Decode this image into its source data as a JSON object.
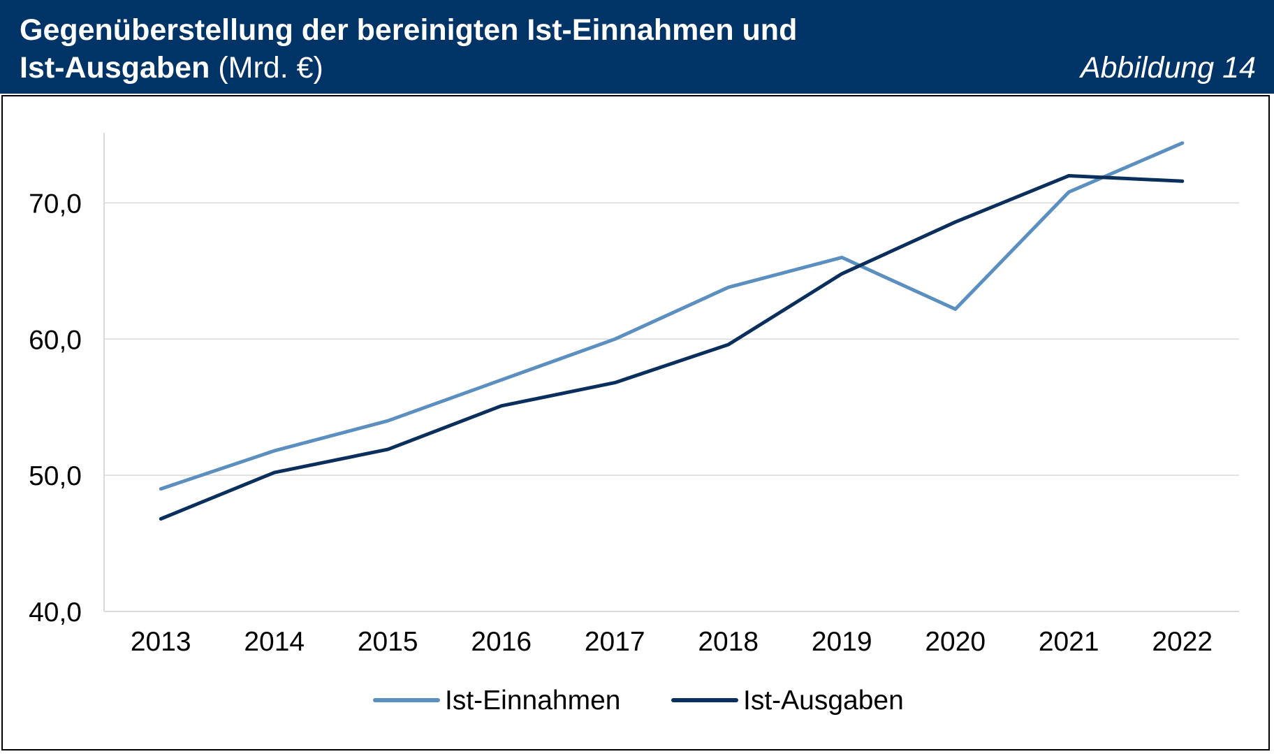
{
  "header": {
    "title_line1": "Gegenüberstellung der bereinigten Ist-Einnahmen und",
    "title_line2_bold": "Ist-Ausgaben",
    "title_line2_unit": "(Mrd. €)",
    "figure_label": "Abbildung 14",
    "background_color": "#003366",
    "text_color": "#ffffff"
  },
  "chart_data": {
    "type": "line",
    "title": "Gegenüberstellung der bereinigten Ist-Einnahmen und Ist-Ausgaben (Mrd. €)",
    "xlabel": "",
    "ylabel": "",
    "categories": [
      "2013",
      "2014",
      "2015",
      "2016",
      "2017",
      "2018",
      "2019",
      "2020",
      "2021",
      "2022"
    ],
    "ylim": [
      40,
      75
    ],
    "yticks": [
      40,
      50,
      60,
      70
    ],
    "ytick_labels": [
      "40,0",
      "50,0",
      "60,0",
      "70,0"
    ],
    "grid": true,
    "legend_position": "bottom-center",
    "series": [
      {
        "name": "Ist-Einnahmen",
        "color": "#5b8fbf",
        "values": [
          49.0,
          51.8,
          54.0,
          57.0,
          60.0,
          63.8,
          66.0,
          62.2,
          70.8,
          74.4
        ]
      },
      {
        "name": "Ist-Ausgaben",
        "color": "#0a2f5c",
        "values": [
          46.8,
          50.2,
          51.9,
          55.1,
          56.8,
          59.6,
          64.8,
          68.6,
          72.0,
          71.6
        ]
      }
    ]
  }
}
